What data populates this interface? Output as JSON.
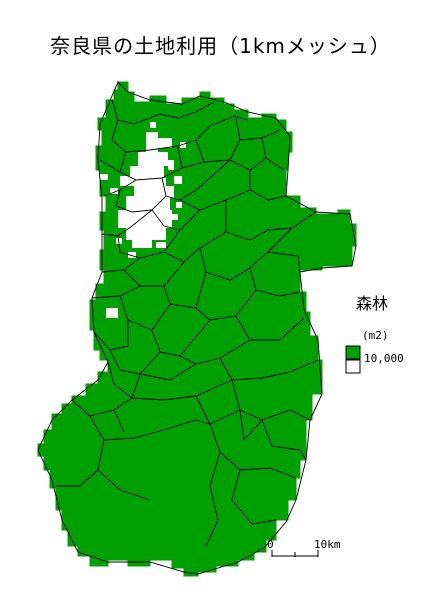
{
  "title": "奈良県の土地利用（1kmメッシュ）",
  "legend": {
    "title": "森林",
    "unit": "(m2)",
    "items": [
      {
        "label": "10,000",
        "color": "#00a000"
      },
      {
        "label": "",
        "color": "#ffffff"
      }
    ]
  },
  "scale_bar": {
    "start_label": "0",
    "end_label": "10km"
  },
  "colors": {
    "forest": "#00a000",
    "non_forest": "#ffffff",
    "boundary": "#000000"
  }
}
